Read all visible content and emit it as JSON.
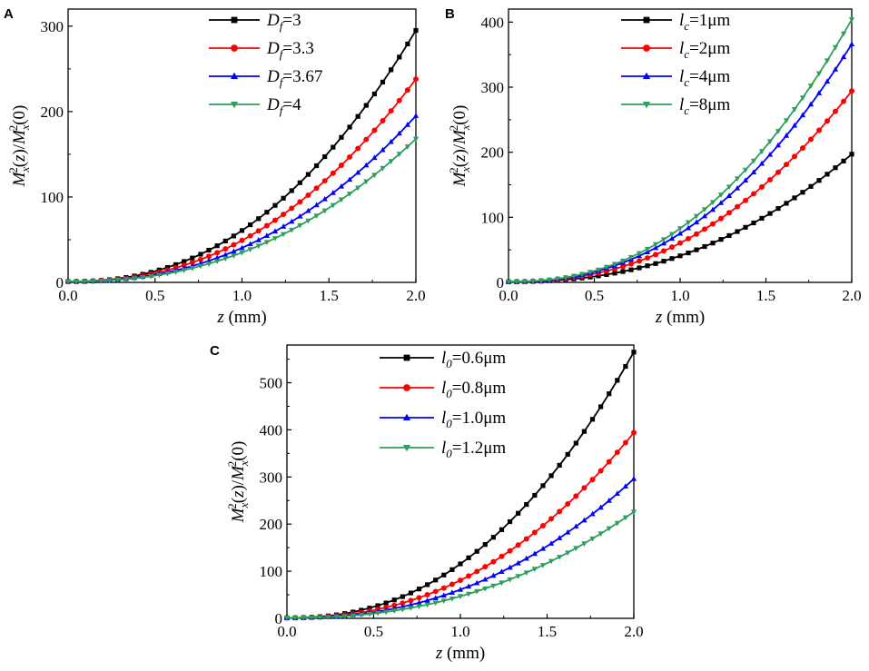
{
  "figure": {
    "panel_labels": [
      "A",
      "B",
      "C"
    ]
  },
  "chart_data": [
    {
      "panel": "A",
      "type": "line",
      "x_axis": {
        "label_var": "z",
        "label_unit": " (mm)",
        "range": [
          0,
          2
        ],
        "ticks": [
          0,
          0.5,
          1,
          1.5,
          2
        ],
        "tick_labels": [
          "0.0",
          "0.5",
          "1.0",
          "1.5",
          "2.0"
        ]
      },
      "y_axis": {
        "label_parts": [
          "M",
          "x",
          "2",
          "(",
          "z",
          ")/",
          "M",
          "x",
          "2",
          "(0)"
        ],
        "range": [
          0,
          320
        ],
        "ticks": [
          0,
          100,
          200,
          300
        ],
        "tick_labels": [
          "0",
          "100",
          "200",
          "300"
        ]
      },
      "legend_position": "top-right",
      "series": [
        {
          "name": "Df=3",
          "legend_sym": "D",
          "legend_sub": "f",
          "legend_val": "=3",
          "color": "#000000",
          "marker": "square",
          "start": 1,
          "end": 295
        },
        {
          "name": "Df=3.3",
          "legend_sym": "D",
          "legend_sub": "f",
          "legend_val": "=3.3",
          "color": "#ff0000",
          "marker": "circle",
          "start": 1,
          "end": 238
        },
        {
          "name": "Df=3.67",
          "legend_sym": "D",
          "legend_sub": "f",
          "legend_val": "=3.67",
          "color": "#0000ff",
          "marker": "triangle-up",
          "start": 1,
          "end": 195
        },
        {
          "name": "Df=4",
          "legend_sym": "D",
          "legend_sub": "f",
          "legend_val": "=4",
          "color": "#2e9e5b",
          "marker": "triangle-down",
          "start": 1,
          "end": 168
        }
      ]
    },
    {
      "panel": "B",
      "type": "line",
      "x_axis": {
        "label_var": "z",
        "label_unit": " (mm)",
        "range": [
          0,
          2
        ],
        "ticks": [
          0,
          0.5,
          1,
          1.5,
          2
        ],
        "tick_labels": [
          "0.0",
          "0.5",
          "1.0",
          "1.5",
          "2.0"
        ]
      },
      "y_axis": {
        "label_parts": [
          "M",
          "x",
          "2",
          "(",
          "z",
          ")/",
          "M",
          "x",
          "2",
          "(0)"
        ],
        "range": [
          0,
          420
        ],
        "ticks": [
          0,
          100,
          200,
          300,
          400
        ],
        "tick_labels": [
          "0",
          "100",
          "200",
          "300",
          "400"
        ]
      },
      "legend_position": "top-right",
      "series": [
        {
          "name": "lc=1μm",
          "legend_sym": "l",
          "legend_sub": "c",
          "legend_val": "=1μm",
          "color": "#000000",
          "marker": "square",
          "start": 1,
          "end": 197
        },
        {
          "name": "lc=2μm",
          "legend_sym": "l",
          "legend_sub": "c",
          "legend_val": "=2μm",
          "color": "#ff0000",
          "marker": "circle",
          "start": 1,
          "end": 294
        },
        {
          "name": "lc=4μm",
          "legend_sym": "l",
          "legend_sub": "c",
          "legend_val": "=4μm",
          "color": "#0000ff",
          "marker": "triangle-up",
          "start": 1,
          "end": 366
        },
        {
          "name": "lc=8μm",
          "legend_sym": "l",
          "legend_sub": "c",
          "legend_val": "=8μm",
          "color": "#2e9e5b",
          "marker": "triangle-down",
          "start": 1,
          "end": 404
        }
      ]
    },
    {
      "panel": "C",
      "type": "line",
      "x_axis": {
        "label_var": "z",
        "label_unit": " (mm)",
        "range": [
          0,
          2
        ],
        "ticks": [
          0,
          0.5,
          1,
          1.5,
          2
        ],
        "tick_labels": [
          "0.0",
          "0.5",
          "1.0",
          "1.5",
          "2.0"
        ]
      },
      "y_axis": {
        "label_parts": [
          "M",
          "x",
          "2",
          "(",
          "z",
          ")/",
          "M",
          "x",
          "2",
          "(0)"
        ],
        "range": [
          0,
          580
        ],
        "ticks": [
          0,
          100,
          200,
          300,
          400,
          500
        ],
        "tick_labels": [
          "0",
          "100",
          "200",
          "300",
          "400",
          "500"
        ]
      },
      "legend_position": "top-left",
      "series": [
        {
          "name": "l0=0.6μm",
          "legend_sym": "l",
          "legend_sub": "0",
          "legend_val": "=0.6μm",
          "color": "#000000",
          "marker": "square",
          "start": 1,
          "end": 565
        },
        {
          "name": "l0=0.8μm",
          "legend_sym": "l",
          "legend_sub": "0",
          "legend_val": "=0.8μm",
          "color": "#ff0000",
          "marker": "circle",
          "start": 1,
          "end": 394
        },
        {
          "name": "l0=1.0μm",
          "legend_sym": "l",
          "legend_sub": "0",
          "legend_val": "=1.0μm",
          "color": "#0000ff",
          "marker": "triangle-up",
          "start": 1,
          "end": 296
        },
        {
          "name": "l0=1.2μm",
          "legend_sym": "l",
          "legend_sub": "0",
          "legend_val": "=1.2μm",
          "color": "#2e9e5b",
          "marker": "triangle-down",
          "start": 1,
          "end": 226
        }
      ]
    }
  ]
}
